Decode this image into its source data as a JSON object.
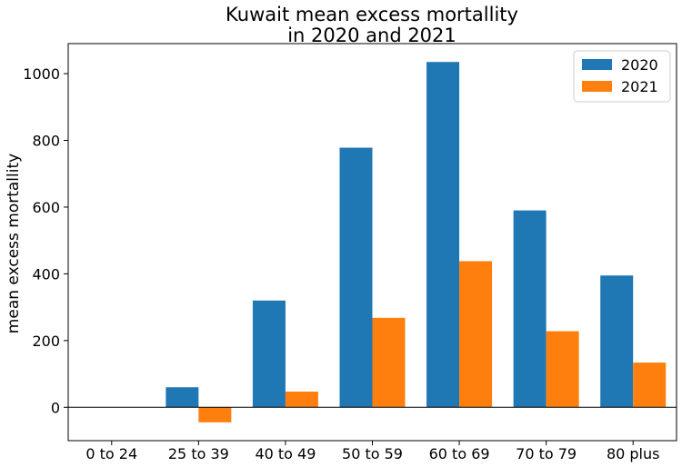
{
  "chart_data": {
    "type": "bar",
    "title_lines": [
      "Kuwait mean excess mortallity",
      "in 2020 and 2021"
    ],
    "xlabel": "",
    "ylabel": "mean excess mortallity",
    "categories": [
      "0 to 24",
      "25 to 39",
      "40 to 49",
      "50 to 59",
      "60 to 69",
      "70 to 79",
      "80 plus"
    ],
    "series": [
      {
        "name": "2020",
        "color": "#1f77b4",
        "values": [
          0,
          60,
          320,
          778,
          1035,
          590,
          395
        ]
      },
      {
        "name": "2021",
        "color": "#ff7f0e",
        "values": [
          0,
          -45,
          47,
          268,
          438,
          228,
          134
        ]
      }
    ],
    "ylim": [
      -100,
      1090
    ],
    "yticks": [
      0,
      200,
      400,
      600,
      800,
      1000
    ],
    "zero_line": true,
    "grid": false,
    "legend_position": "top-right"
  }
}
